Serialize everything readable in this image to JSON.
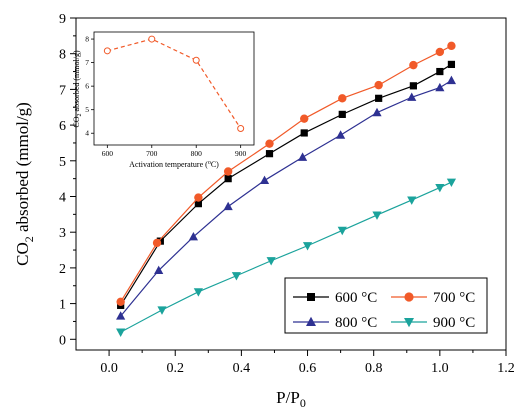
{
  "chart_data": [
    {
      "type": "line",
      "xlabel": "P/P0",
      "ylabel": "CO2 absorbed (mmol/g)",
      "xlim": [
        -0.1,
        1.2
      ],
      "ylim": [
        -0.3,
        9
      ],
      "xticks": [
        0.0,
        0.2,
        0.4,
        0.6,
        0.8,
        1.0,
        1.2
      ],
      "yticks": [
        0,
        1,
        2,
        3,
        4,
        5,
        6,
        7,
        8,
        9
      ],
      "xtick_labels": [
        "0.0",
        "0.2",
        "0.4",
        "0.6",
        "0.8",
        "1.0",
        "1.2"
      ],
      "ytick_labels": [
        "0",
        "1",
        "2",
        "3",
        "4",
        "5",
        "6",
        "7",
        "8",
        "9"
      ],
      "legend_position": "bottom-right",
      "series": [
        {
          "name": "600 °C",
          "color": "#000000",
          "marker": "square",
          "x": [
            0.035,
            0.155,
            0.27,
            0.36,
            0.485,
            0.59,
            0.705,
            0.815,
            0.92,
            1.0,
            1.035
          ],
          "y": [
            0.95,
            2.75,
            3.8,
            4.5,
            5.2,
            5.78,
            6.3,
            6.75,
            7.1,
            7.5,
            7.7
          ]
        },
        {
          "name": "700 °C",
          "color": "#f15a29",
          "marker": "circle",
          "x": [
            0.035,
            0.145,
            0.27,
            0.36,
            0.485,
            0.59,
            0.705,
            0.815,
            0.92,
            1.0,
            1.035
          ],
          "y": [
            1.05,
            2.7,
            3.97,
            4.7,
            5.48,
            6.18,
            6.75,
            7.12,
            7.68,
            8.05,
            8.22
          ]
        },
        {
          "name": "800 °C",
          "color": "#2e3192",
          "marker": "triangle-up",
          "x": [
            0.035,
            0.15,
            0.255,
            0.36,
            0.47,
            0.585,
            0.7,
            0.81,
            0.915,
            1.0,
            1.035
          ],
          "y": [
            0.65,
            1.93,
            2.87,
            3.72,
            4.45,
            5.1,
            5.72,
            6.35,
            6.78,
            7.05,
            7.25
          ]
        },
        {
          "name": "900 °C",
          "color": "#1ba39c",
          "marker": "triangle-down",
          "x": [
            0.035,
            0.16,
            0.27,
            0.385,
            0.49,
            0.6,
            0.705,
            0.81,
            0.915,
            1.0,
            1.035
          ],
          "y": [
            0.2,
            0.82,
            1.33,
            1.78,
            2.2,
            2.62,
            3.05,
            3.48,
            3.9,
            4.25,
            4.4
          ]
        }
      ]
    },
    {
      "type": "line",
      "xlabel": "Activation temperature (°C)",
      "ylabel": "CO2 absorbed (mmol/g)",
      "xlim": [
        570,
        930
      ],
      "ylim": [
        3.5,
        8.3
      ],
      "xticks": [
        600,
        700,
        800,
        900
      ],
      "yticks": [
        4,
        5,
        6,
        7,
        8
      ],
      "xtick_labels": [
        "600",
        "700",
        "800",
        "900"
      ],
      "ytick_labels": [
        "4",
        "5",
        "6",
        "7",
        "8"
      ],
      "series": [
        {
          "color": "#f15a29",
          "marker": "open-circle",
          "line_style": "dashed",
          "x": [
            600,
            700,
            800,
            900
          ],
          "y": [
            7.5,
            8.0,
            7.1,
            4.2
          ]
        }
      ]
    }
  ]
}
